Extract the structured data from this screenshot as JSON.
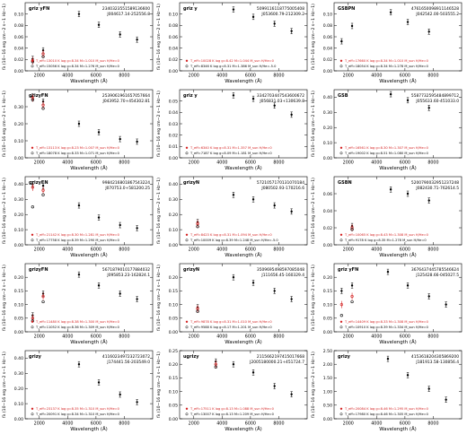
{
  "figure": {
    "ylabel_main": "f",
    "ylabel_sub": "λ",
    "ylabel_units": " (10",
    "ylabel_exp": "−16",
    "ylabel_tail": " erg cm",
    "ylabel_exp2": "−2",
    "ylabel_tail2": " s",
    "ylabel_exp3": "−1",
    "ylabel_tail3": " Hz",
    "ylabel_exp4": "−1",
    "ylabel_tail4": ")",
    "xlabel": "Wavelength (Å)"
  },
  "chart_data": [
    {
      "type": "scatter",
      "title": "griz yFN",
      "id1": "2340323551589136600",
      "id2": "J004617.14-252556.8",
      "ylim": [
        0,
        0.12
      ],
      "yticks": [
        0,
        0.02,
        0.04,
        0.06,
        0.08,
        0.1
      ],
      "ytick_labels": [
        "0.00",
        "0.02",
        "0.04",
        "0.06",
        "0.08",
        "0.10"
      ],
      "xlim": [
        1000,
        10000
      ],
      "xticks": [
        2000,
        4000,
        6000,
        8000
      ],
      "points_obs": [
        [
          1528,
          0.021
        ],
        [
          2271,
          0.036
        ],
        [
          4800,
          0.1
        ],
        [
          6200,
          0.081
        ],
        [
          7700,
          0.064
        ],
        [
          8900,
          0.055
        ]
      ],
      "points_m1": [
        [
          1528,
          0.018
        ],
        [
          2271,
          0.03
        ]
      ],
      "points_m2": [
        [
          1528,
          0.016
        ],
        [
          2271,
          0.025
        ]
      ],
      "legend": [
        "T_eff=13010 K  log g=8.34  M=1.010 M_sun H/He=0",
        "T_eff=15056 K  log g=8.34  M=1.276 M_sun H/He=0"
      ]
    },
    {
      "type": "scatter",
      "title": "griz y",
      "id1": "5099116118775005408",
      "id2": "J053600.79-212309.2",
      "ylim": [
        0,
        0.12
      ],
      "yticks": [
        0,
        0.02,
        0.04,
        0.06,
        0.08,
        0.1
      ],
      "ytick_labels": [
        "0.00",
        "0.02",
        "0.04",
        "0.06",
        "0.08",
        "0.10"
      ],
      "xlim": [
        1000,
        10000
      ],
      "xticks": [
        2000,
        4000,
        6000,
        8000
      ],
      "points_obs": [
        [
          4800,
          0.108
        ],
        [
          6200,
          0.095
        ],
        [
          7700,
          0.083
        ],
        [
          8900,
          0.07
        ]
      ],
      "points_m1": [],
      "points_m2": [],
      "legend": [
        "T_eff=10028 K  log g=8.42  M=1.044 M_sun H/He=0",
        "T_eff=8346 K  log g=8.31  M=1.386 M_sun H/He=-5.0"
      ]
    },
    {
      "type": "scatter",
      "title": "GSBPN",
      "id1": "4761650098911146528",
      "id2": "J042542.00-503555.2",
      "ylim": [
        0,
        0.12
      ],
      "yticks": [
        0,
        0.02,
        0.04,
        0.06,
        0.08,
        0.1
      ],
      "ytick_labels": [
        "0.00",
        "0.02",
        "0.04",
        "0.06",
        "0.08",
        "0.10"
      ],
      "xlim": [
        1000,
        10000
      ],
      "xticks": [
        2000,
        4000,
        6000,
        8000
      ],
      "points_obs": [
        [
          1528,
          0.052
        ],
        [
          2271,
          0.079
        ],
        [
          5000,
          0.103
        ],
        [
          6200,
          0.086
        ],
        [
          7700,
          0.069
        ]
      ],
      "points_m1": [],
      "points_m2": [],
      "legend": [
        "T_eff=17660 K  log g=8.34  M=1.010 M_sun H/He=0",
        "T_eff=18054 K  log g=8.34  M=1.278 M_sun H/He=0"
      ]
    },
    {
      "type": "scatter",
      "title": "grizyFN",
      "id1": "2539061961657057664",
      "id2": "J043952.70+454302.81",
      "ylim": [
        0,
        0.4
      ],
      "yticks": [
        0,
        0.1,
        0.2,
        0.3
      ],
      "ytick_labels": [
        "0.00",
        "0.10",
        "0.20",
        "0.30"
      ],
      "xlim": [
        1000,
        10000
      ],
      "xticks": [
        2000,
        4000,
        6000,
        8000
      ],
      "points_obs": [
        [
          1528,
          0.36
        ],
        [
          2271,
          0.33
        ],
        [
          4800,
          0.2
        ],
        [
          6200,
          0.15
        ],
        [
          7700,
          0.11
        ],
        [
          8900,
          0.095
        ]
      ],
      "points_m1": [
        [
          1528,
          0.35
        ],
        [
          2271,
          0.31
        ]
      ],
      "points_m2": [
        [
          1528,
          0.34
        ],
        [
          2271,
          0.29
        ]
      ],
      "legend": [
        "T_eff=13113 K  log g=8.23  M=1.007 M_sun H/He=0",
        "T_eff=18078 K  log g=8.33  M=1.071 M_sun H/He=0"
      ]
    },
    {
      "type": "scatter",
      "title": "griz y",
      "id1": "3342703447543600672",
      "id2": "J056831.03+130639.8",
      "ylim": [
        0,
        0.06
      ],
      "yticks": [
        0,
        0.01,
        0.02,
        0.03,
        0.04,
        0.05
      ],
      "ytick_labels": [
        "0.00",
        "0.01",
        "0.02",
        "0.03",
        "0.04",
        "0.05"
      ],
      "xlim": [
        1000,
        10000
      ],
      "xticks": [
        2000,
        4000,
        6000,
        8000
      ],
      "points_obs": [
        [
          4800,
          0.055
        ],
        [
          6200,
          0.052
        ],
        [
          7700,
          0.046
        ],
        [
          8900,
          0.038
        ]
      ],
      "points_m1": [],
      "points_m2": [],
      "legend": [
        "T_eff=6340 K  log g=8.31  M=1.357 M_sun H/He=0",
        "T_eff=7187 K  log g=8.09  M=1.181 M_sun H/He=0"
      ]
    },
    {
      "type": "scatter",
      "title": "GSB",
      "id1": "5587732595484899712",
      "id2": "J055633.60-451033.0",
      "ylim": [
        0,
        0.45
      ],
      "yticks": [
        0,
        0.1,
        0.2,
        0.3,
        0.4
      ],
      "ytick_labels": [
        "0.00",
        "0.10",
        "0.20",
        "0.30",
        "0.40"
      ],
      "xlim": [
        1000,
        10000
      ],
      "xticks": [
        2000,
        4000,
        6000,
        8000
      ],
      "points_obs": [
        [
          5000,
          0.42
        ],
        [
          6200,
          0.38
        ],
        [
          7700,
          0.33
        ]
      ],
      "points_m1": [],
      "points_m2": [],
      "legend": [
        "T_eff=16561 K  log g=8.30  M=1.307 M_sun H/He=0",
        "T_eff=19002 K  log g=8.51  M=1.080 M_sun H/He=0"
      ]
    },
    {
      "type": "scatter",
      "title": "grizyFN",
      "id1": "9984216801867543224",
      "id2": "J070753.0+581200.25",
      "ylim": [
        0,
        0.45
      ],
      "yticks": [
        0,
        0.1,
        0.2,
        0.3,
        0.4
      ],
      "ytick_labels": [
        "0.00",
        "0.10",
        "0.20",
        "0.30",
        "0.40"
      ],
      "xlim": [
        1000,
        10000
      ],
      "xticks": [
        2000,
        4000,
        6000,
        8000
      ],
      "points_obs": [
        [
          1528,
          0.4
        ],
        [
          2271,
          0.39
        ],
        [
          4800,
          0.26
        ],
        [
          6200,
          0.18
        ],
        [
          7700,
          0.13
        ],
        [
          8900,
          0.11
        ]
      ],
      "points_m1": [
        [
          1528,
          0.38
        ],
        [
          2271,
          0.36
        ]
      ],
      "points_m2": [
        [
          1528,
          0.25
        ],
        [
          2271,
          0.33
        ]
      ],
      "legend": [
        "T_eff=21142 K  log g=8.30  M=1.281 M_sun H/He=0",
        "T_eff=17758 K  log g=8.39  M=1.290 M_sun H/He=0"
      ]
    },
    {
      "type": "scatter",
      "title": "grizyN",
      "id1": "5721057170131070184",
      "id2": "J080502.93-170216.6",
      "ylim": [
        0,
        0.45
      ],
      "yticks": [
        0,
        0.1,
        0.2,
        0.3,
        0.4
      ],
      "ytick_labels": [
        "0.00",
        "0.10",
        "0.20",
        "0.30",
        "0.40"
      ],
      "xlim": [
        1000,
        10000
      ],
      "xticks": [
        2000,
        4000,
        6000,
        8000
      ],
      "points_obs": [
        [
          2271,
          0.15
        ],
        [
          4800,
          0.33
        ],
        [
          6200,
          0.3
        ],
        [
          7700,
          0.26
        ],
        [
          8900,
          0.22
        ]
      ],
      "points_m1": [
        [
          2271,
          0.14
        ]
      ],
      "points_m2": [
        [
          2271,
          0.12
        ]
      ],
      "legend": [
        "T_eff=8423 K  log g=8.31  M=1.094 M_sun H/He=0",
        "T_eff=10009 K  log g=8.39  M=1.248 M_sun H/He=-5.0"
      ]
    },
    {
      "type": "scatter",
      "title": "GSBN",
      "id1": "5200790032951237248",
      "id2": "J082430.71-762614.5",
      "ylim": [
        0,
        0.08
      ],
      "yticks": [
        0,
        0.02,
        0.04,
        0.06
      ],
      "ytick_labels": [
        "0.00",
        "0.02",
        "0.04",
        "0.06"
      ],
      "xlim": [
        1000,
        10000
      ],
      "xticks": [
        2000,
        4000,
        6000,
        8000
      ],
      "points_obs": [
        [
          2271,
          0.022
        ],
        [
          5000,
          0.065
        ],
        [
          6200,
          0.06
        ],
        [
          7700,
          0.052
        ]
      ],
      "points_m1": [
        [
          2271,
          0.02
        ]
      ],
      "points_m2": [
        [
          2271,
          0.018
        ]
      ],
      "legend": [
        "T_eff=10065 K  log g=8.43  M=1.308 M_sun H/He=0",
        "T_eff=9178 K  log g=8.35  M=1.278 M_sun H/He=0"
      ]
    },
    {
      "type": "scatter",
      "title": "grizyFN",
      "id1": "5671879010177884032",
      "id2": "J095853.23-162824.1",
      "ylim": [
        0,
        0.25
      ],
      "yticks": [
        0,
        0.05,
        0.1,
        0.15,
        0.2
      ],
      "ytick_labels": [
        "0.00",
        "0.05",
        "0.10",
        "0.15",
        "0.20"
      ],
      "xlim": [
        1000,
        10000
      ],
      "xticks": [
        2000,
        4000,
        6000,
        8000
      ],
      "points_obs": [
        [
          1528,
          0.06
        ],
        [
          2271,
          0.14
        ],
        [
          4800,
          0.21
        ],
        [
          6200,
          0.17
        ],
        [
          7700,
          0.14
        ],
        [
          8900,
          0.12
        ]
      ],
      "points_m1": [
        [
          1528,
          0.05
        ],
        [
          2271,
          0.13
        ]
      ],
      "points_m2": [
        [
          1528,
          0.04
        ],
        [
          2271,
          0.11
        ]
      ],
      "legend": [
        "T_eff=11480 K  log g=8.38  M=1.300 M_sun H/He=0",
        "T_eff=11052 K  log g=8.36  M=1.309 M_sun H/He=0"
      ]
    },
    {
      "type": "scatter",
      "title": "grizyN",
      "id1": "3509695498597085048",
      "id2": "J111656.45-160329.4",
      "ylim": [
        0,
        0.25
      ],
      "yticks": [
        0,
        0.05,
        0.1,
        0.15,
        0.2
      ],
      "ytick_labels": [
        "0.00",
        "0.05",
        "0.10",
        "0.15",
        "0.20"
      ],
      "xlim": [
        1000,
        10000
      ],
      "xticks": [
        2000,
        4000,
        6000,
        8000
      ],
      "points_obs": [
        [
          2271,
          0.09
        ],
        [
          4800,
          0.2
        ],
        [
          6200,
          0.18
        ],
        [
          7700,
          0.15
        ],
        [
          8900,
          0.12
        ]
      ],
      "points_m1": [
        [
          2271,
          0.085
        ]
      ],
      "points_m2": [
        [
          2271,
          0.075
        ]
      ],
      "legend": [
        "T_eff=9878 K  log g=8.31  M=1.010 M_sun H/He=0",
        "T_eff=9588 K  log g=8.17  M=1.201 M_sun H/He=0"
      ]
    },
    {
      "type": "scatter",
      "title": "griz yFN",
      "id1": "3676437445785546624",
      "id2": "J125428.66-045027.5",
      "ylim": [
        0,
        0.25
      ],
      "yticks": [
        0,
        0.05,
        0.1,
        0.15,
        0.2
      ],
      "ytick_labels": [
        "0.00",
        "0.05",
        "0.10",
        "0.15",
        "0.20"
      ],
      "xlim": [
        1000,
        10000
      ],
      "xticks": [
        2000,
        4000,
        6000,
        8000
      ],
      "points_obs": [
        [
          1528,
          0.15
        ],
        [
          2271,
          0.17
        ],
        [
          4800,
          0.22
        ],
        [
          6200,
          0.17
        ],
        [
          7700,
          0.13
        ],
        [
          8900,
          0.1
        ]
      ],
      "points_m1": [
        [
          1528,
          0.1
        ],
        [
          2271,
          0.13
        ]
      ],
      "points_m2": [
        [
          1528,
          0.06
        ],
        [
          2271,
          0.11
        ]
      ],
      "legend": [
        "T_eff=14409 K  log g=8.33  M=1.308 M_sun H/He=0",
        "T_eff=10910 K  log g=8.39  M=1.334 M_sun H/He=0"
      ]
    },
    {
      "type": "scatter",
      "title": "grizy",
      "id1": "4116023497232723072",
      "id2": "J174441.56-203549.0",
      "ylim": [
        0,
        0.45
      ],
      "yticks": [
        0,
        0.1,
        0.2,
        0.3,
        0.4
      ],
      "ytick_labels": [
        "0.00",
        "0.10",
        "0.20",
        "0.30",
        "0.40"
      ],
      "xlim": [
        1000,
        10000
      ],
      "xticks": [
        2000,
        4000,
        6000,
        8000
      ],
      "points_obs": [
        [
          4800,
          0.36
        ],
        [
          6200,
          0.24
        ],
        [
          7700,
          0.16
        ],
        [
          8900,
          0.11
        ]
      ],
      "points_m1": [],
      "points_m2": [],
      "legend": [
        "T_eff=23137 K  log g=8.35  M=1.310 M_sun H/He=0",
        "T_eff=20091 K  log g=8.34  M=1.310 M_sun H/He=0"
      ]
    },
    {
      "type": "scatter",
      "title": "ugrizy",
      "id1": "2115662197415017668",
      "id2": "J2005180000.21+451724.7",
      "ylim": [
        0,
        0.25
      ],
      "yticks": [
        0,
        0.05,
        0.1,
        0.15,
        0.2,
        0.25
      ],
      "ytick_labels": [
        "0.00",
        "0.05",
        "0.10",
        "0.15",
        "0.20",
        "0.25"
      ],
      "xlim": [
        1000,
        10000
      ],
      "xticks": [
        2000,
        4000,
        6000,
        8000
      ],
      "points_obs": [
        [
          3551,
          0.21
        ],
        [
          4800,
          0.2
        ],
        [
          6200,
          0.17
        ],
        [
          7700,
          0.12
        ],
        [
          8900,
          0.09
        ]
      ],
      "points_m1": [
        [
          3551,
          0.2
        ]
      ],
      "points_m2": [
        [
          3551,
          0.19
        ]
      ],
      "legend": [
        "T_eff=17511 K  log g=8.13  M=1.088 M_sun H/He=0",
        "T_eff=13007 K  log g=8.13  M=1.209 M_sun H/He=0"
      ]
    },
    {
      "type": "scatter",
      "title": "grizy",
      "id1": "4153618204305869200",
      "id2": "J181913.58-130856.4",
      "ylim": [
        0,
        2.5
      ],
      "yticks": [
        0,
        0.5,
        1,
        1.5,
        2,
        2.5
      ],
      "ytick_labels": [
        "0.00",
        "0.50",
        "1.00",
        "1.50",
        "2.00",
        "2.50"
      ],
      "xlim": [
        1000,
        10000
      ],
      "xticks": [
        2000,
        4000,
        6000,
        8000
      ],
      "points_obs": [
        [
          4800,
          2.2
        ],
        [
          6200,
          1.6
        ],
        [
          7700,
          1.1
        ],
        [
          8900,
          0.7
        ]
      ],
      "points_m1": [],
      "points_m2": [],
      "legend": [
        "T_eff=20084 K  log g=8.46  M=1.295 M_sun H/He=0",
        "T_eff=17980 K  log g=8.46  M=1.305 M_sun H/He=0"
      ]
    }
  ]
}
